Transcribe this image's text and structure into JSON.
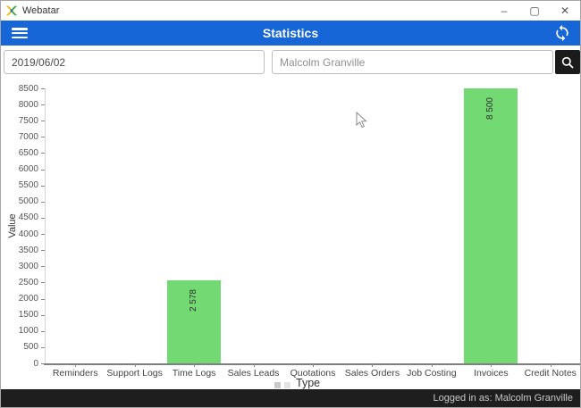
{
  "window": {
    "app_title": "Webatar",
    "controls": {
      "minimize": "–",
      "maximize": "▢",
      "close": "✕"
    }
  },
  "header": {
    "title": "Statistics"
  },
  "filters": {
    "date_value": "2019/06/02",
    "user_value": "Malcolm Granville"
  },
  "statusbar": {
    "text": "Logged in as: Malcolm Granville"
  },
  "icons": {
    "app_logo": "webatar-x-logo",
    "menu": "hamburger-menu",
    "refresh": "sync-circular-arrows",
    "search": "magnifier"
  },
  "colors": {
    "header_blue": "#1666d8",
    "bar_green": "#73da73",
    "statusbar_dark": "#1e1e1e",
    "search_button_black": "#1b1b1b"
  },
  "chart_data": {
    "type": "bar",
    "title": "",
    "xlabel": "Type",
    "ylabel": "Value",
    "categories": [
      "Reminders",
      "Support Logs",
      "Time Logs",
      "Sales Leads",
      "Quotations",
      "Sales Orders",
      "Job Costing",
      "Invoices",
      "Credit Notes"
    ],
    "values": [
      0,
      0,
      2578,
      0,
      0,
      0,
      0,
      8500,
      0
    ],
    "bar_labels": [
      "",
      "",
      "2 578",
      "",
      "",
      "",
      "",
      "8 500",
      ""
    ],
    "ylim": [
      0,
      8500
    ],
    "ytick_step": 500,
    "bar_color": "#73da73",
    "grid": false,
    "legend": false
  }
}
